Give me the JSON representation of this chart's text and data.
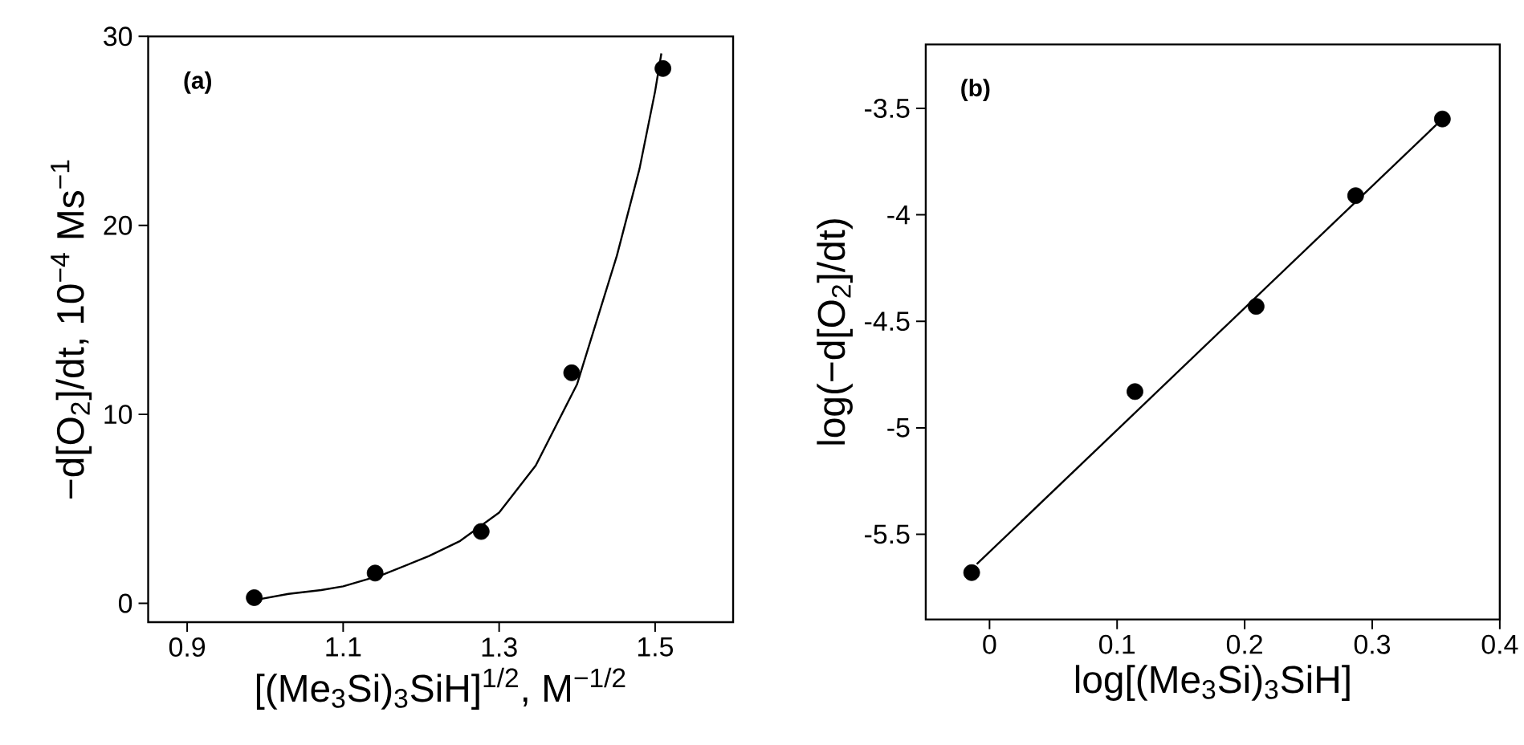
{
  "chart_data": [
    {
      "type": "scatter",
      "xlabel": "[(Me$_{3}$Si)$_{3}$SiH]$^{1/2}$, M$^{−1/2}$",
      "ylabel": "−d[O$_{2}$]/dt, 10$^{−4}$ Ms$^{−1}$",
      "annotations": [
        "(a)"
      ],
      "xlim": [
        0.85,
        1.6
      ],
      "ylim": [
        -1,
        30
      ],
      "xticks": [
        0.9,
        1.1,
        1.3,
        1.5
      ],
      "yticks": [
        0,
        10,
        20,
        30
      ],
      "series": [
        {
          "marker": "circle",
          "color": "#000000",
          "x": [
            0.986,
            1.141,
            1.277,
            1.393,
            1.51
          ],
          "values": [
            0.3,
            1.6,
            3.8,
            12.2,
            28.3
          ]
        },
        {
          "type": "line",
          "marker": "none",
          "line_style": "solid",
          "color": "#000000",
          "x": [
            0.99,
            1.03,
            1.072,
            1.1,
            1.15,
            1.21,
            1.25,
            1.3,
            1.347,
            1.4,
            1.451,
            1.48,
            1.5,
            1.508
          ],
          "values": [
            0.2,
            0.5,
            0.7,
            0.9,
            1.5,
            2.5,
            3.3,
            4.8,
            7.3,
            11.6,
            18.4,
            23.0,
            27.1,
            29.1
          ]
        }
      ]
    },
    {
      "type": "scatter",
      "xlabel": "log[(Me$_{3}$Si)$_{3}$SiH]",
      "ylabel": "log(−d[O$_{2}$]/dt)",
      "annotations": [
        "(b)"
      ],
      "xlim": [
        -0.05,
        0.4
      ],
      "ylim": [
        -5.9,
        -3.2
      ],
      "xticks": [
        0,
        0.1,
        0.2,
        0.3,
        0.4
      ],
      "yticks": [
        -5.5,
        -5,
        -4.5,
        -4,
        -3.5
      ],
      "series": [
        {
          "marker": "circle",
          "color": "#000000",
          "x": [
            -0.014,
            0.114,
            0.209,
            0.287,
            0.355
          ],
          "values": [
            -5.68,
            -4.83,
            -4.43,
            -3.91,
            -3.55
          ]
        },
        {
          "type": "line",
          "marker": "none",
          "line_style": "solid",
          "color": "#000000",
          "x": [
            -0.01,
            0.355
          ],
          "values": [
            -5.64,
            -3.55
          ]
        }
      ]
    }
  ]
}
